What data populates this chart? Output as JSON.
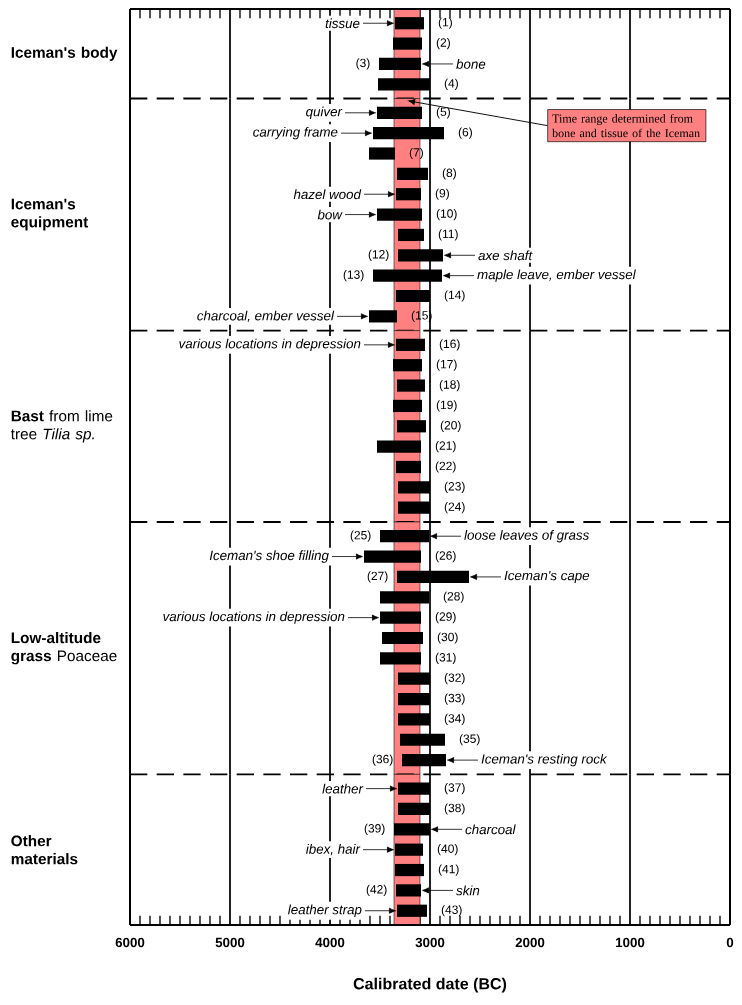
{
  "chart_data": [
    {
      "type": "bar",
      "orientation": "horizontal",
      "color": "#000000",
      "ylabel": "**Iceman's body**",
      "categories": [
        "(1)",
        "(2)",
        "(3)",
        "(4)"
      ],
      "base": [
        3060,
        3080,
        3090,
        3000
      ],
      "values": [
        290,
        290,
        420,
        520
      ],
      "xlim": [
        6000,
        0
      ],
      "xticks": [
        6000,
        5000,
        4000,
        3000,
        2000,
        1000,
        0
      ],
      "grid": "x",
      "tick_labels": false,
      "bands": [
        {
          "axis": "x",
          "from": 3360,
          "to": 3100,
          "color": "#ff8080"
        }
      ],
      "annotations": [
        {
          "text": "tissue",
          "x": 3350,
          "y": "(1)"
        },
        {
          "text": "bone",
          "x": 3090,
          "y": "(3)"
        }
      ]
    },
    {
      "type": "bar",
      "orientation": "horizontal",
      "color": "#000000",
      "ylabel": "**Iceman's equipment**",
      "categories": [
        "(5)",
        "(6)",
        "(7)",
        "(8)",
        "(9)",
        "(10)",
        "(11)",
        "(12)",
        "(13)",
        "(14)",
        "(15)"
      ],
      "base": [
        3080,
        2860,
        3350,
        3020,
        3090,
        3080,
        3060,
        2870,
        2880,
        3000,
        3330
      ],
      "values": [
        450,
        710,
        260,
        310,
        250,
        450,
        260,
        450,
        690,
        340,
        280
      ],
      "xlim": [
        6000,
        0
      ],
      "xticks": [
        6000,
        5000,
        4000,
        3000,
        2000,
        1000,
        0
      ],
      "grid": "x",
      "tick_labels": false,
      "bands": [
        {
          "axis": "x",
          "from": 3360,
          "to": 3100,
          "color": "#ff8080",
          "label": "Time range determined from bone and tissue of the Iceman"
        }
      ],
      "annotations": [
        {
          "text": "quiver",
          "x": 3530,
          "y": "(5)"
        },
        {
          "text": "carrying frame",
          "x": 3570,
          "y": "(6)"
        },
        {
          "text": "hazel wood",
          "x": 3340,
          "y": "(9)"
        },
        {
          "text": "bow",
          "x": 3530,
          "y": "(10)"
        },
        {
          "text": "axe shaft",
          "x": 2870,
          "y": "(12)"
        },
        {
          "text": "maple leave, ember vessel",
          "x": 2880,
          "y": "(13)"
        },
        {
          "text": "charcoal, ember vessel",
          "x": 3610,
          "y": "(15)"
        }
      ]
    },
    {
      "type": "bar",
      "orientation": "horizontal",
      "color": "#000000",
      "ylabel": "**Bast** from lime tree *Tilia sp.*",
      "categories": [
        "(16)",
        "(17)",
        "(18)",
        "(19)",
        "(20)",
        "(21)",
        "(22)",
        "(23)",
        "(24)"
      ],
      "base": [
        3050,
        3080,
        3050,
        3080,
        3040,
        3090,
        3090,
        3000,
        3000
      ],
      "values": [
        290,
        290,
        280,
        290,
        290,
        440,
        250,
        320,
        320
      ],
      "xlim": [
        6000,
        0
      ],
      "xticks": [
        6000,
        5000,
        4000,
        3000,
        2000,
        1000,
        0
      ],
      "grid": "x",
      "tick_labels": false,
      "bands": [
        {
          "axis": "x",
          "from": 3360,
          "to": 3100,
          "color": "#ff8080"
        }
      ],
      "annotations": [
        {
          "text": "various locations in depression",
          "x": 3340,
          "y": "(16)"
        }
      ]
    },
    {
      "type": "bar",
      "orientation": "horizontal",
      "color": "#000000",
      "ylabel": "**Low-altitude grass** Poaceae",
      "categories": [
        "(25)",
        "(26)",
        "(27)",
        "(28)",
        "(29)",
        "(30)",
        "(31)",
        "(32)",
        "(33)",
        "(34)",
        "(35)",
        "(36)"
      ],
      "base": [
        3010,
        3090,
        2610,
        3010,
        3090,
        3070,
        3090,
        3000,
        3000,
        3000,
        2850,
        2840
      ],
      "values": [
        490,
        570,
        720,
        490,
        410,
        410,
        410,
        320,
        320,
        320,
        450,
        440
      ],
      "xlim": [
        6000,
        0
      ],
      "xticks": [
        6000,
        5000,
        4000,
        3000,
        2000,
        1000,
        0
      ],
      "grid": "x",
      "tick_labels": false,
      "bands": [
        {
          "axis": "x",
          "from": 3360,
          "to": 3100,
          "color": "#ff8080"
        }
      ],
      "annotations": [
        {
          "text": "loose leaves of grass",
          "x": 3010,
          "y": "(25)"
        },
        {
          "text": "Iceman's shoe filling",
          "x": 3660,
          "y": "(26)"
        },
        {
          "text": "Iceman's cape",
          "x": 2610,
          "y": "(27)"
        },
        {
          "text": "various locations in depression",
          "x": 3500,
          "y": "(29)"
        },
        {
          "text": "Iceman's resting rock",
          "x": 2840,
          "y": "(36)"
        }
      ]
    },
    {
      "type": "bar",
      "orientation": "horizontal",
      "color": "#000000",
      "ylabel": "**Other materials**",
      "categories": [
        "(37)",
        "(38)",
        "(39)",
        "(40)",
        "(41)",
        "(42)",
        "(43)"
      ],
      "base": [
        3000,
        3000,
        3000,
        3070,
        3060,
        3090,
        3030
      ],
      "values": [
        320,
        320,
        360,
        280,
        290,
        250,
        300
      ],
      "xlim": [
        6000,
        0
      ],
      "xticks": [
        6000,
        5000,
        4000,
        3000,
        2000,
        1000,
        0
      ],
      "grid": "x",
      "tick_labels": "x",
      "xlabel": "Calibrated date (BC)",
      "bands": [
        {
          "axis": "x",
          "from": 3360,
          "to": 3100,
          "color": "#ff8080"
        }
      ],
      "annotations": [
        {
          "text": "leather",
          "x": 3320,
          "y": "(37)"
        },
        {
          "text": "charcoal",
          "x": 3000,
          "y": "(39)"
        },
        {
          "text": "ibex, hair",
          "x": 3350,
          "y": "(40)"
        },
        {
          "text": "skin",
          "x": 3090,
          "y": "(42)"
        },
        {
          "text": "leather strap",
          "x": 3330,
          "y": "(43)"
        }
      ]
    }
  ]
}
